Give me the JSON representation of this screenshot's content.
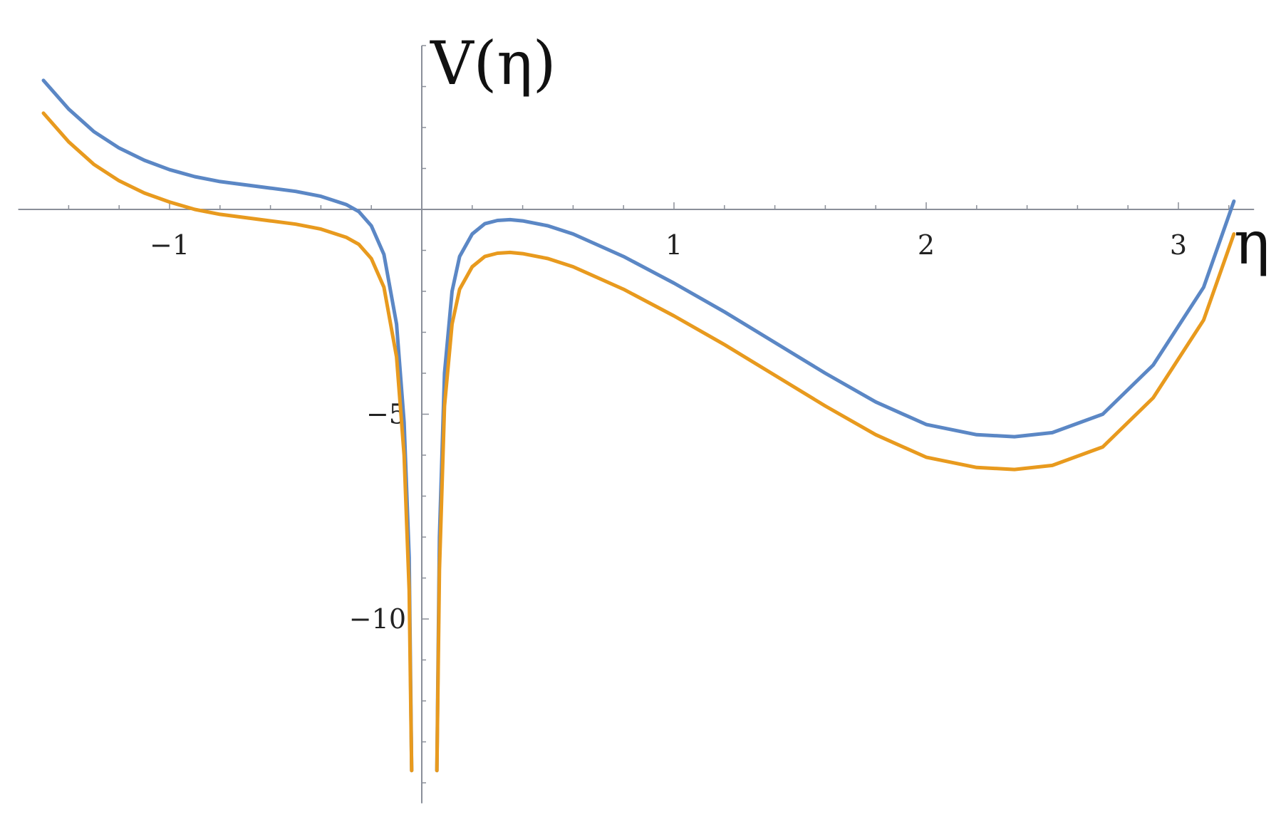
{
  "chart_data": {
    "type": "line",
    "title": "",
    "xlabel": "η",
    "ylabel": "V(η)",
    "xlim": [
      -1.6,
      3.3
    ],
    "ylim": [
      -14.5,
      4
    ],
    "x_ticks": [
      {
        "value": -1,
        "label": "−1"
      },
      {
        "value": 1,
        "label": "1"
      },
      {
        "value": 2,
        "label": "2"
      },
      {
        "value": 3,
        "label": "3"
      }
    ],
    "y_ticks": [
      {
        "value": -5,
        "label": "−5"
      },
      {
        "value": -10,
        "label": "−10"
      }
    ],
    "grid": false,
    "legend": "none",
    "series": [
      {
        "color": "#5b87c5",
        "points": [
          [
            -1.5,
            3.15
          ],
          [
            -1.4,
            2.45
          ],
          [
            -1.3,
            1.9
          ],
          [
            -1.2,
            1.5
          ],
          [
            -1.1,
            1.2
          ],
          [
            -1.0,
            0.97
          ],
          [
            -0.9,
            0.8
          ],
          [
            -0.8,
            0.68
          ],
          [
            -0.7,
            0.6
          ],
          [
            -0.6,
            0.52
          ],
          [
            -0.5,
            0.44
          ],
          [
            -0.4,
            0.32
          ],
          [
            -0.3,
            0.12
          ],
          [
            -0.25,
            -0.05
          ],
          [
            -0.2,
            -0.4
          ],
          [
            -0.15,
            -1.1
          ],
          [
            -0.1,
            -2.8
          ],
          [
            -0.07,
            -5.2
          ],
          [
            -0.05,
            -8.5
          ],
          [
            -0.04,
            -13.7
          ],
          [
            0.06,
            -13.7
          ],
          [
            0.07,
            -8.0
          ],
          [
            0.09,
            -4.0
          ],
          [
            0.12,
            -2.0
          ],
          [
            0.15,
            -1.15
          ],
          [
            0.2,
            -0.6
          ],
          [
            0.25,
            -0.35
          ],
          [
            0.3,
            -0.27
          ],
          [
            0.35,
            -0.25
          ],
          [
            0.4,
            -0.28
          ],
          [
            0.5,
            -0.4
          ],
          [
            0.6,
            -0.6
          ],
          [
            0.8,
            -1.15
          ],
          [
            1.0,
            -1.8
          ],
          [
            1.2,
            -2.5
          ],
          [
            1.4,
            -3.25
          ],
          [
            1.6,
            -4.0
          ],
          [
            1.8,
            -4.7
          ],
          [
            2.0,
            -5.25
          ],
          [
            2.2,
            -5.5
          ],
          [
            2.35,
            -5.55
          ],
          [
            2.5,
            -5.45
          ],
          [
            2.7,
            -5.0
          ],
          [
            2.9,
            -3.8
          ],
          [
            3.1,
            -1.9
          ],
          [
            3.22,
            0.2
          ]
        ]
      },
      {
        "color": "#e89a1e",
        "points": [
          [
            -1.5,
            2.35
          ],
          [
            -1.4,
            1.65
          ],
          [
            -1.3,
            1.1
          ],
          [
            -1.2,
            0.7
          ],
          [
            -1.1,
            0.4
          ],
          [
            -1.0,
            0.18
          ],
          [
            -0.9,
            0.0
          ],
          [
            -0.8,
            -0.12
          ],
          [
            -0.7,
            -0.2
          ],
          [
            -0.6,
            -0.28
          ],
          [
            -0.5,
            -0.36
          ],
          [
            -0.4,
            -0.48
          ],
          [
            -0.3,
            -0.68
          ],
          [
            -0.25,
            -0.85
          ],
          [
            -0.2,
            -1.2
          ],
          [
            -0.15,
            -1.9
          ],
          [
            -0.1,
            -3.6
          ],
          [
            -0.07,
            -6.0
          ],
          [
            -0.05,
            -9.3
          ],
          [
            -0.04,
            -13.7
          ],
          [
            0.06,
            -13.7
          ],
          [
            0.07,
            -8.8
          ],
          [
            0.09,
            -4.8
          ],
          [
            0.12,
            -2.8
          ],
          [
            0.15,
            -1.95
          ],
          [
            0.2,
            -1.4
          ],
          [
            0.25,
            -1.15
          ],
          [
            0.3,
            -1.07
          ],
          [
            0.35,
            -1.05
          ],
          [
            0.4,
            -1.08
          ],
          [
            0.5,
            -1.2
          ],
          [
            0.6,
            -1.4
          ],
          [
            0.8,
            -1.95
          ],
          [
            1.0,
            -2.6
          ],
          [
            1.2,
            -3.3
          ],
          [
            1.4,
            -4.05
          ],
          [
            1.6,
            -4.8
          ],
          [
            1.8,
            -5.5
          ],
          [
            2.0,
            -6.05
          ],
          [
            2.2,
            -6.3
          ],
          [
            2.35,
            -6.35
          ],
          [
            2.5,
            -6.25
          ],
          [
            2.7,
            -5.8
          ],
          [
            2.9,
            -4.6
          ],
          [
            3.1,
            -2.7
          ],
          [
            3.22,
            -0.6
          ]
        ]
      }
    ]
  }
}
